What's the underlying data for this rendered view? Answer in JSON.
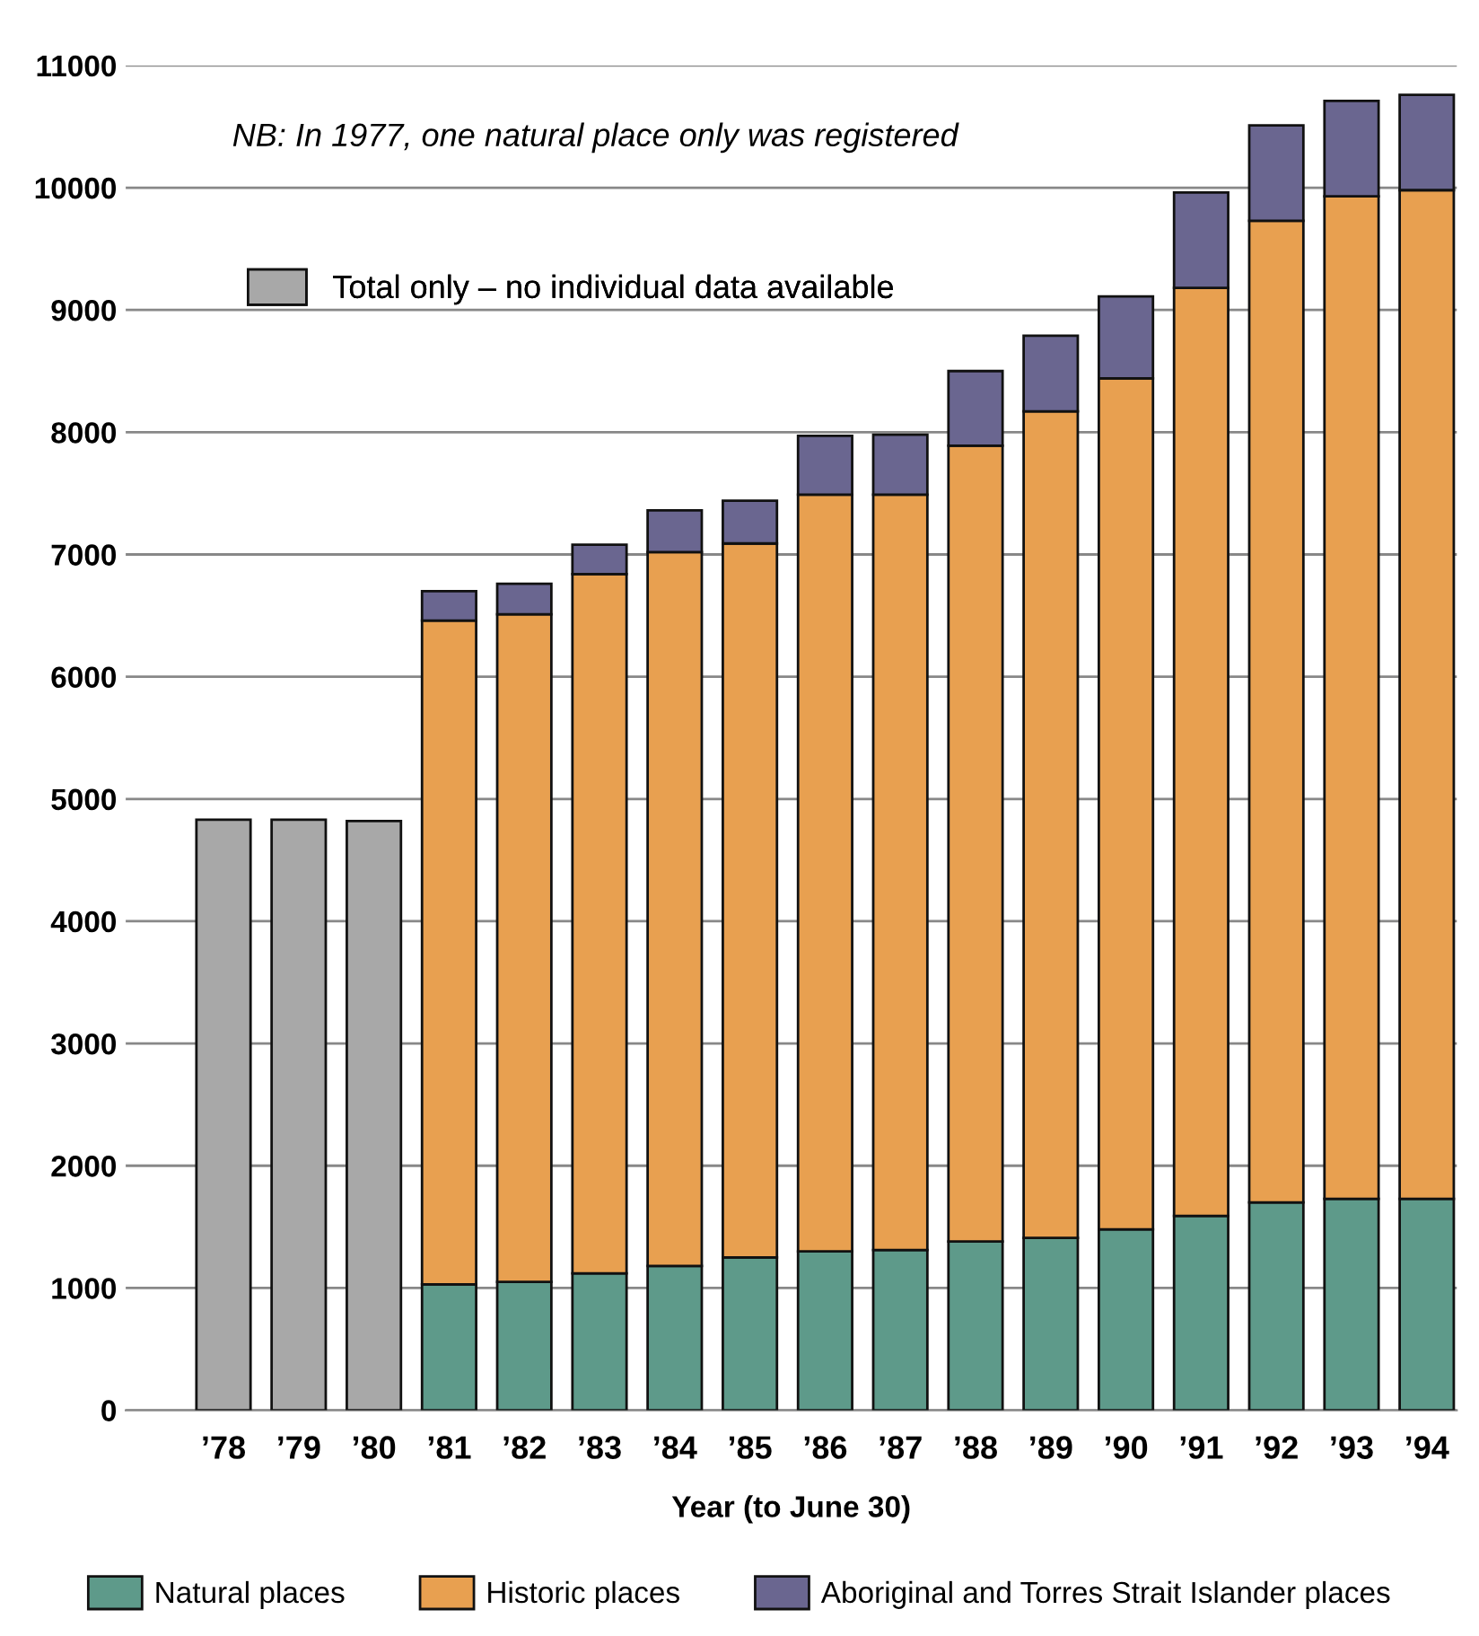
{
  "chart_data": {
    "type": "bar",
    "stacked": true,
    "categories": [
      "’78",
      "’79",
      "’80",
      "’81",
      "’82",
      "’83",
      "’84",
      "’85",
      "’86",
      "’87",
      "’88",
      "’89",
      "’90",
      "’91",
      "’92",
      "’93",
      "’94"
    ],
    "series": [
      {
        "name": "Total only – no individual data available",
        "color": "#a8a8a8",
        "values": [
          4830,
          4830,
          4820,
          null,
          null,
          null,
          null,
          null,
          null,
          null,
          null,
          null,
          null,
          null,
          null,
          null,
          null
        ]
      },
      {
        "name": "Natural places",
        "color": "#5e9a8a",
        "values": [
          null,
          null,
          null,
          1030,
          1050,
          1120,
          1180,
          1250,
          1300,
          1310,
          1380,
          1410,
          1480,
          1590,
          1700,
          1730,
          1730
        ]
      },
      {
        "name": "Historic places",
        "color": "#e8a050",
        "values": [
          null,
          null,
          null,
          5430,
          5460,
          5720,
          5840,
          5840,
          6190,
          6180,
          6510,
          6760,
          6960,
          7590,
          8030,
          8200,
          8250
        ]
      },
      {
        "name": "Aboriginal and Torres Strait Islander places",
        "color": "#6a6690",
        "values": [
          null,
          null,
          null,
          240,
          250,
          240,
          340,
          350,
          480,
          490,
          610,
          620,
          670,
          780,
          780,
          780,
          780
        ]
      }
    ],
    "xlabel": "Year (to June 30)",
    "annotations": [
      "NB: In 1977, one natural place only was registered"
    ],
    "ylim": [
      0,
      11000
    ],
    "yticks": [
      0,
      1000,
      2000,
      3000,
      4000,
      5000,
      6000,
      7000,
      8000,
      9000,
      10000,
      11000
    ],
    "grid": "y",
    "legend": "bottom"
  }
}
